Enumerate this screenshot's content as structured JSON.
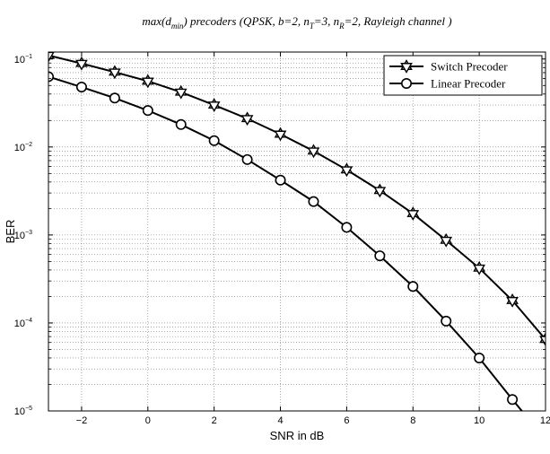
{
  "chart_data": {
    "type": "line",
    "title_parts": [
      {
        "t": "max(d",
        "sub": false
      },
      {
        "t": "min",
        "sub": true
      },
      {
        "t": ")  precoders (QPSK, b=2, n",
        "sub": false
      },
      {
        "t": "T",
        "sub": true
      },
      {
        "t": "=3, n",
        "sub": false
      },
      {
        "t": "R",
        "sub": true
      },
      {
        "t": "=2, Rayleigh channel )",
        "sub": false
      }
    ],
    "xlabel": "SNR in dB",
    "ylabel": "BER",
    "xlim": [
      -3,
      12
    ],
    "ylim": [
      1e-05,
      0.12
    ],
    "yscale": "log",
    "grid": true,
    "legend_position": "top-right",
    "x_ticks": [
      {
        "value": -2,
        "label": "−2"
      },
      {
        "value": 0,
        "label": "0"
      },
      {
        "value": 2,
        "label": "2"
      },
      {
        "value": 4,
        "label": "4"
      },
      {
        "value": 6,
        "label": "6"
      },
      {
        "value": 8,
        "label": "8"
      },
      {
        "value": 10,
        "label": "10"
      },
      {
        "value": 12,
        "label": "12"
      }
    ],
    "y_ticks": [
      {
        "value": 0.1,
        "base": "10",
        "exp": "−1"
      },
      {
        "value": 0.01,
        "base": "10",
        "exp": "−2"
      },
      {
        "value": 0.001,
        "base": "10",
        "exp": "−3"
      },
      {
        "value": 0.0001,
        "base": "10",
        "exp": "−4"
      },
      {
        "value": 1e-05,
        "base": "10",
        "exp": "−5"
      }
    ],
    "series": [
      {
        "name": "Switch Precoder",
        "marker": "hexagram",
        "color": "#000000",
        "x": [
          -3,
          -2,
          -1,
          0,
          1,
          2,
          3,
          4,
          5,
          6,
          7,
          8,
          9,
          10,
          11,
          12
        ],
        "y": [
          0.11,
          0.089,
          0.071,
          0.056,
          0.042,
          0.03,
          0.021,
          0.014,
          0.009,
          0.0055,
          0.0032,
          0.00175,
          0.00087,
          0.00042,
          0.00018,
          6.5e-05
        ]
      },
      {
        "name": "Linear Precoder",
        "marker": "circle",
        "color": "#000000",
        "x": [
          -3,
          -2,
          -1,
          0,
          1,
          2,
          3,
          4,
          5,
          6,
          7,
          8,
          9,
          10,
          11,
          11.6
        ],
        "y": [
          0.063,
          0.048,
          0.036,
          0.026,
          0.018,
          0.0118,
          0.0072,
          0.0042,
          0.0024,
          0.00122,
          0.00058,
          0.00026,
          0.000105,
          4e-05,
          1.35e-05,
          7.2e-06
        ]
      }
    ]
  }
}
